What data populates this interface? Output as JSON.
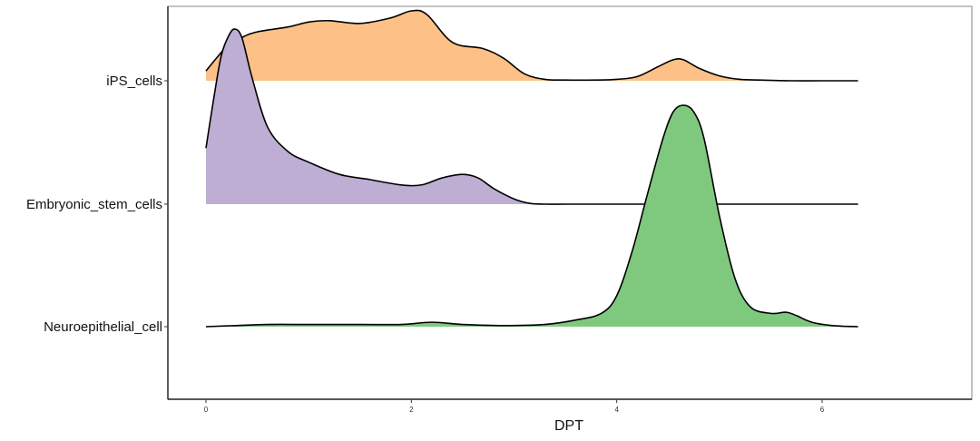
{
  "chart_data": {
    "type": "area",
    "subtype": "ridgeline-density",
    "title": "",
    "xlabel": "DPT",
    "ylabel": "",
    "xlim": [
      -0.35,
      7.4
    ],
    "x_ticks": [
      0,
      2,
      4,
      6
    ],
    "grid": false,
    "legend": "none",
    "categories": [
      "iPS_cells",
      "Embryonic_stem_cells",
      "Neuroepithelial_cell"
    ],
    "series": [
      {
        "name": "iPS_cells",
        "color": "#FDC086",
        "fill_range": [
          0.0,
          5.35
        ],
        "x": [
          0.0,
          0.1,
          0.2,
          0.35,
          0.5,
          0.8,
          1.0,
          1.2,
          1.5,
          1.8,
          2.0,
          2.15,
          2.4,
          2.7,
          2.9,
          3.1,
          3.3,
          3.5,
          3.8,
          4.0,
          4.2,
          4.4,
          4.55,
          4.65,
          4.8,
          5.0,
          5.2,
          5.4,
          5.7,
          6.0,
          6.35
        ],
        "density": [
          0.14,
          0.32,
          0.48,
          0.62,
          0.7,
          0.77,
          0.84,
          0.86,
          0.82,
          0.9,
          1.0,
          0.95,
          0.55,
          0.46,
          0.32,
          0.1,
          0.02,
          0.01,
          0.01,
          0.02,
          0.06,
          0.2,
          0.3,
          0.3,
          0.18,
          0.07,
          0.02,
          0.01,
          0.0,
          0.0,
          0.0
        ]
      },
      {
        "name": "Embryonic_stem_cells",
        "color": "#BEAED4",
        "fill_range": [
          0.0,
          3.3
        ],
        "x": [
          0.0,
          0.08,
          0.15,
          0.22,
          0.28,
          0.35,
          0.45,
          0.6,
          0.8,
          1.0,
          1.3,
          1.6,
          1.9,
          2.1,
          2.3,
          2.5,
          2.65,
          2.8,
          3.0,
          3.15,
          3.3,
          3.5,
          3.8,
          4.2,
          5.0,
          6.0,
          6.35
        ],
        "density": [
          0.32,
          0.62,
          0.85,
          0.96,
          1.0,
          0.95,
          0.72,
          0.44,
          0.3,
          0.24,
          0.17,
          0.14,
          0.11,
          0.11,
          0.15,
          0.17,
          0.15,
          0.09,
          0.03,
          0.005,
          0.0,
          0.0,
          0.0,
          0.0,
          0.0,
          0.0,
          0.0
        ]
      },
      {
        "name": "Neuroepithelial_cell",
        "color": "#7FC97F",
        "fill_range": [
          0.0,
          6.35
        ],
        "x": [
          0.0,
          0.3,
          0.6,
          1.0,
          1.5,
          1.9,
          2.2,
          2.5,
          2.9,
          3.3,
          3.6,
          3.85,
          4.0,
          4.15,
          4.3,
          4.45,
          4.55,
          4.65,
          4.75,
          4.85,
          5.0,
          5.15,
          5.3,
          5.5,
          5.65,
          5.75,
          5.9,
          6.1,
          6.35
        ],
        "density": [
          0.0,
          0.005,
          0.01,
          0.01,
          0.01,
          0.01,
          0.02,
          0.01,
          0.005,
          0.01,
          0.03,
          0.06,
          0.14,
          0.34,
          0.6,
          0.85,
          0.97,
          1.0,
          0.97,
          0.85,
          0.5,
          0.22,
          0.09,
          0.06,
          0.065,
          0.05,
          0.02,
          0.005,
          0.0
        ]
      }
    ]
  }
}
